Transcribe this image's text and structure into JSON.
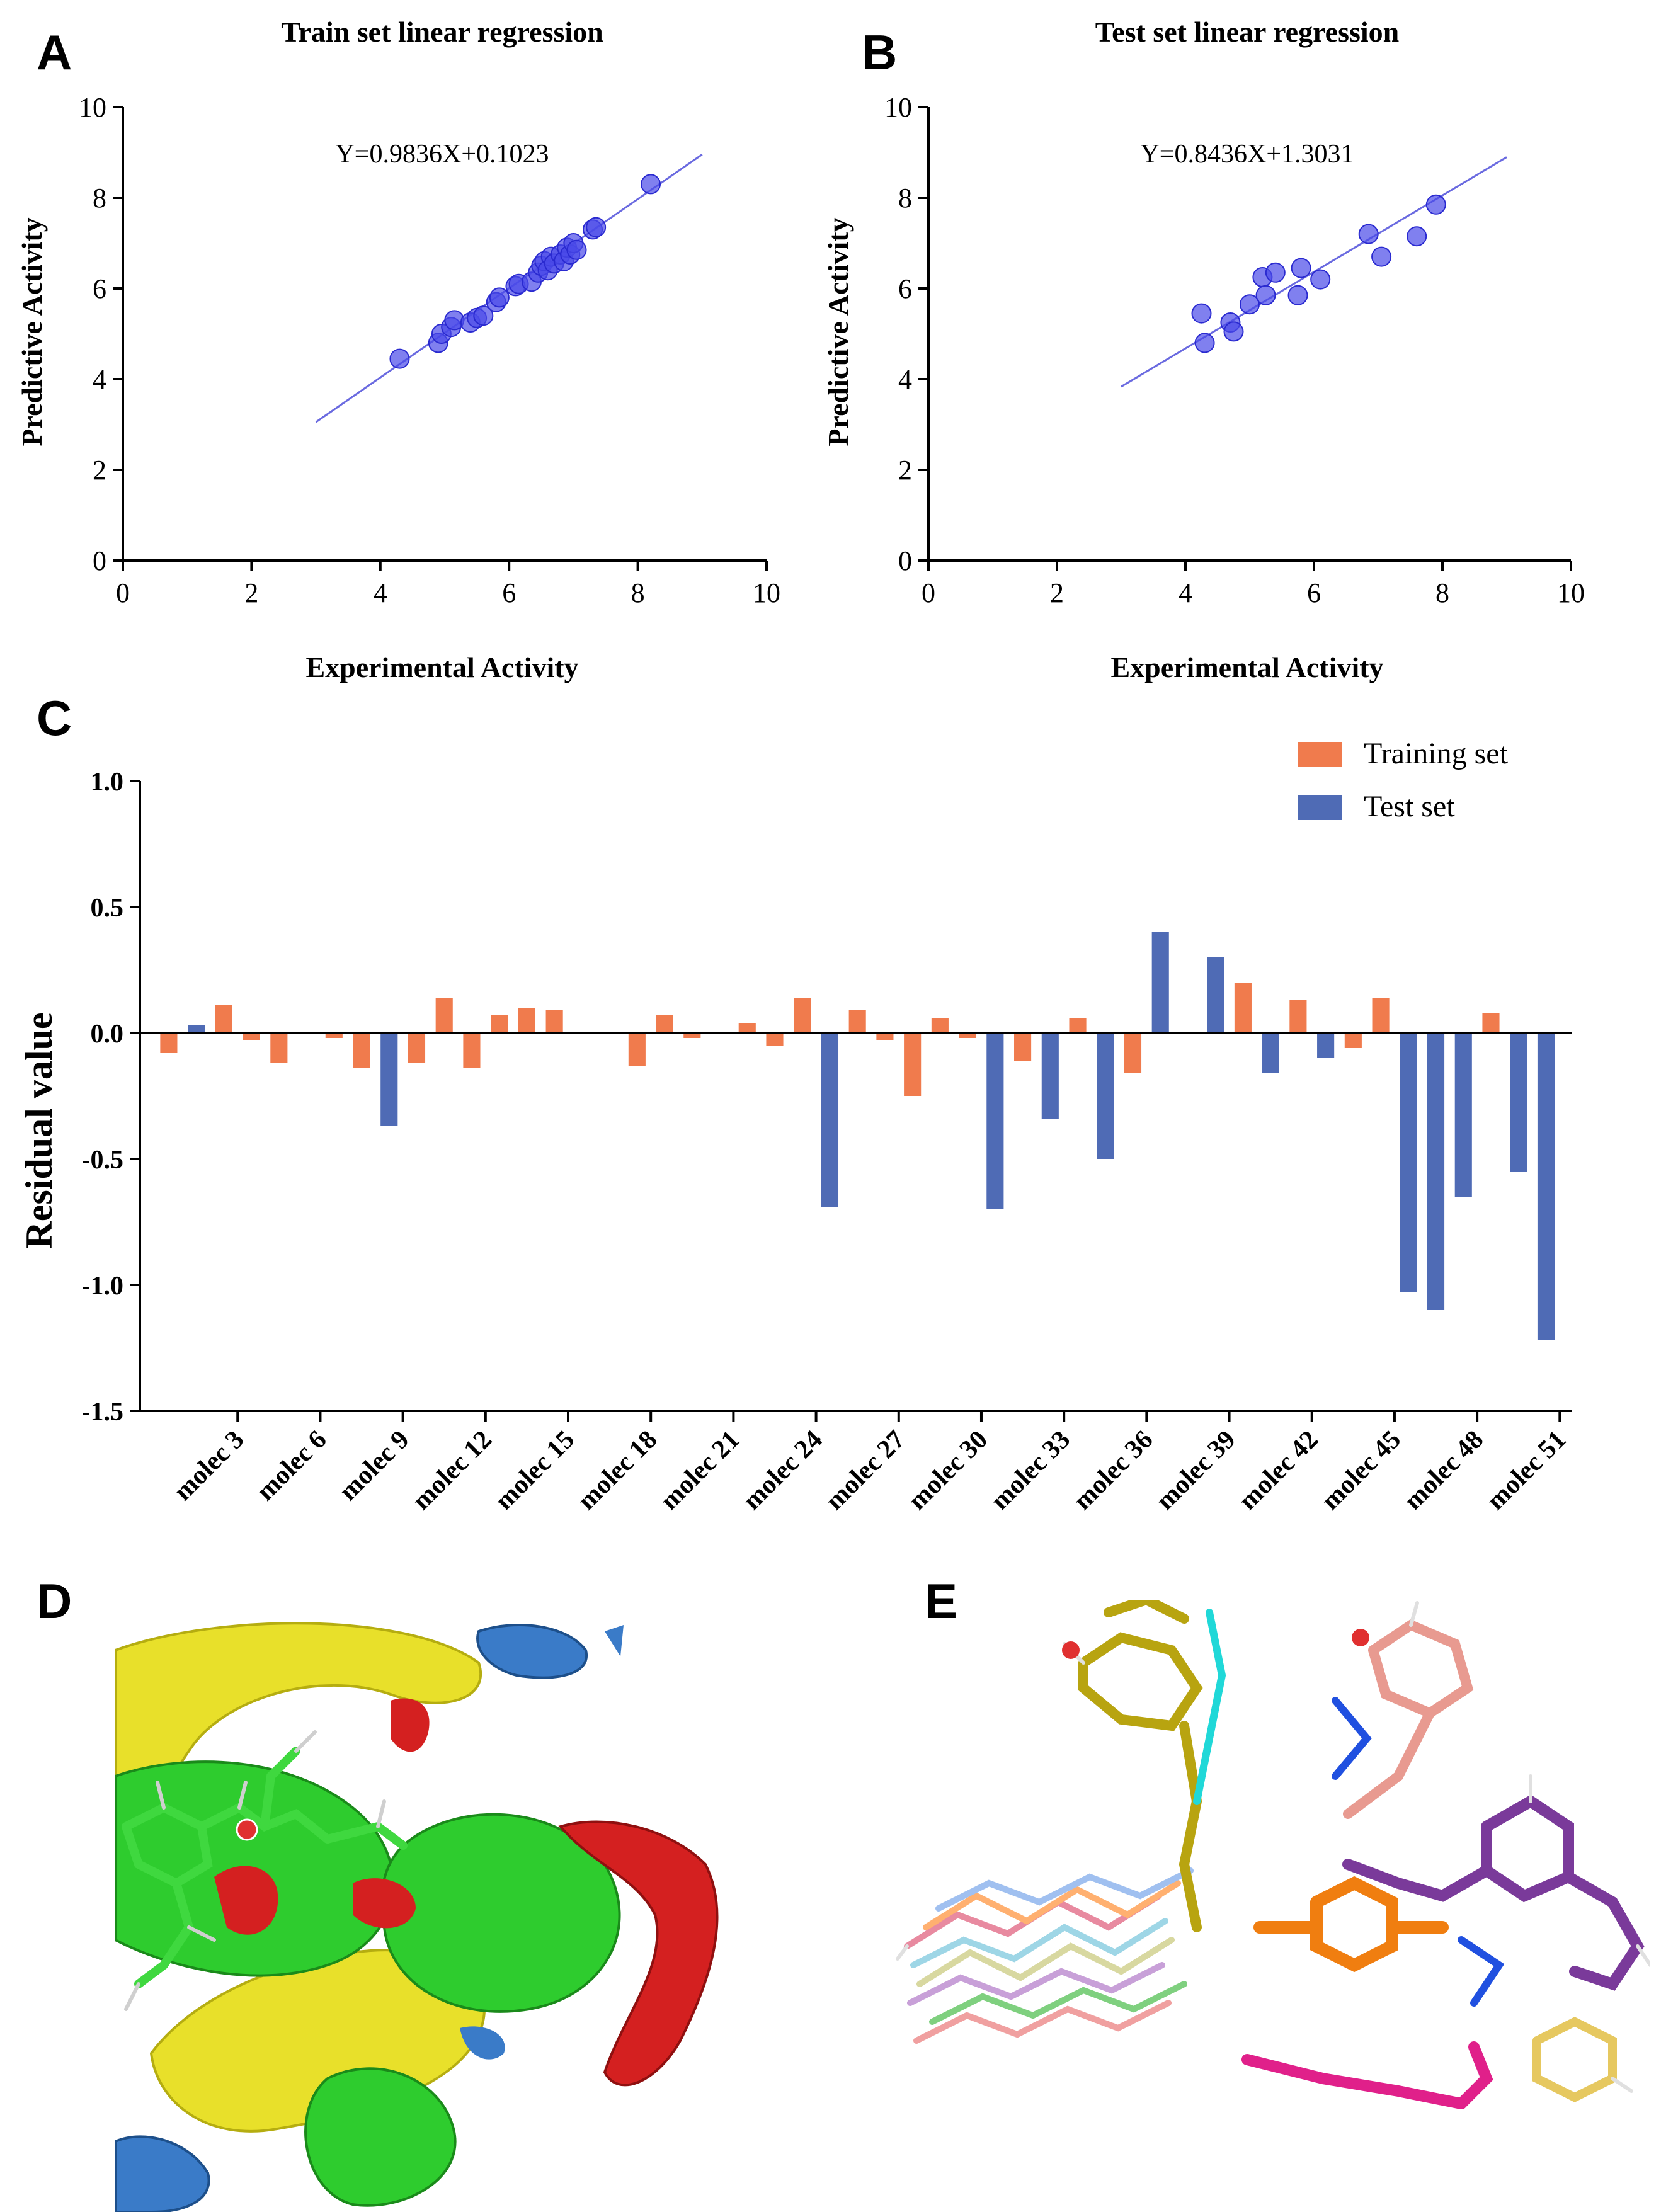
{
  "panels": {
    "a": "A",
    "b": "B",
    "c": "C",
    "d": "D",
    "e": "E"
  },
  "chart_data": [
    {
      "type": "scatter",
      "title": "Train set linear regression",
      "equation": "Y=0.9836X+0.1023",
      "xlabel": "Experimental Activity",
      "ylabel": "Predictive Activity",
      "xlim": [
        0,
        10
      ],
      "ylim": [
        0,
        10
      ],
      "xticks": [
        "0",
        "2",
        "4",
        "6",
        "8",
        "10"
      ],
      "yticks": [
        "0",
        "2",
        "4",
        "6",
        "8",
        "10"
      ],
      "fit": {
        "slope": 0.9836,
        "intercept": 0.1023,
        "x_range": [
          3,
          9
        ]
      },
      "points": [
        [
          4.3,
          4.45
        ],
        [
          4.9,
          4.8
        ],
        [
          4.95,
          5.0
        ],
        [
          5.1,
          5.15
        ],
        [
          5.15,
          5.3
        ],
        [
          5.4,
          5.25
        ],
        [
          5.5,
          5.35
        ],
        [
          5.6,
          5.4
        ],
        [
          5.8,
          5.7
        ],
        [
          5.85,
          5.8
        ],
        [
          6.1,
          6.05
        ],
        [
          6.15,
          6.1
        ],
        [
          6.35,
          6.15
        ],
        [
          6.45,
          6.35
        ],
        [
          6.5,
          6.5
        ],
        [
          6.55,
          6.6
        ],
        [
          6.6,
          6.4
        ],
        [
          6.65,
          6.7
        ],
        [
          6.7,
          6.55
        ],
        [
          6.8,
          6.75
        ],
        [
          6.85,
          6.6
        ],
        [
          6.9,
          6.9
        ],
        [
          6.95,
          6.75
        ],
        [
          7.0,
          7.0
        ],
        [
          7.05,
          6.85
        ],
        [
          7.3,
          7.3
        ],
        [
          7.35,
          7.35
        ],
        [
          8.2,
          8.3
        ]
      ]
    },
    {
      "type": "scatter",
      "title": "Test set linear regression",
      "equation": "Y=0.8436X+1.3031",
      "xlabel": "Experimental Activity",
      "ylabel": "Predictive Activity",
      "xlim": [
        0,
        10
      ],
      "ylim": [
        0,
        10
      ],
      "xticks": [
        "0",
        "2",
        "4",
        "6",
        "8",
        "10"
      ],
      "yticks": [
        "0",
        "2",
        "4",
        "6",
        "8",
        "10"
      ],
      "fit": {
        "slope": 0.8436,
        "intercept": 1.3031,
        "x_range": [
          3,
          9
        ]
      },
      "points": [
        [
          4.25,
          5.45
        ],
        [
          4.3,
          4.8
        ],
        [
          4.7,
          5.25
        ],
        [
          4.75,
          5.05
        ],
        [
          5.0,
          5.65
        ],
        [
          5.2,
          6.25
        ],
        [
          5.25,
          5.85
        ],
        [
          5.4,
          6.35
        ],
        [
          5.75,
          5.85
        ],
        [
          5.8,
          6.45
        ],
        [
          6.1,
          6.2
        ],
        [
          6.85,
          7.2
        ],
        [
          7.05,
          6.7
        ],
        [
          7.6,
          7.15
        ],
        [
          7.9,
          7.85
        ]
      ]
    },
    {
      "type": "bar",
      "ylabel": "Residual value",
      "ylim": [
        -1.5,
        1.0
      ],
      "yticks": [
        "1.0",
        "0.5",
        "0.0",
        "-0.5",
        "-1.0",
        "-1.5"
      ],
      "ytick_values": [
        1.0,
        0.5,
        0.0,
        -0.5,
        -1.0,
        -1.5
      ],
      "tick_labels": [
        "molec 3",
        "molec 6",
        "molec 9",
        "molec 12",
        "molec 15",
        "molec 18",
        "molec 21",
        "molec 24",
        "molec 27",
        "molec 30",
        "molec 33",
        "molec 36",
        "molec 39",
        "molec 42",
        "molec 45",
        "molec 48",
        "molec 51"
      ],
      "tick_positions": [
        3,
        6,
        9,
        12,
        15,
        18,
        21,
        24,
        27,
        30,
        33,
        36,
        39,
        42,
        45,
        48,
        51
      ],
      "legend": [
        {
          "label": "Training set",
          "color": "#f07b4d"
        },
        {
          "label": "Test set",
          "color": "#4f6bb5"
        }
      ],
      "legend_position": "top-right",
      "bars": [
        {
          "i": 1,
          "v": -0.08,
          "s": 0
        },
        {
          "i": 2,
          "v": 0.03,
          "s": 1
        },
        {
          "i": 3,
          "v": 0.11,
          "s": 0
        },
        {
          "i": 4,
          "v": -0.03,
          "s": 0
        },
        {
          "i": 5,
          "v": -0.12,
          "s": 0
        },
        {
          "i": 7,
          "v": -0.02,
          "s": 0
        },
        {
          "i": 8,
          "v": -0.14,
          "s": 0
        },
        {
          "i": 9,
          "v": -0.37,
          "s": 1
        },
        {
          "i": 10,
          "v": -0.12,
          "s": 0
        },
        {
          "i": 11,
          "v": 0.14,
          "s": 0
        },
        {
          "i": 12,
          "v": -0.14,
          "s": 0
        },
        {
          "i": 13,
          "v": 0.07,
          "s": 0
        },
        {
          "i": 14,
          "v": 0.1,
          "s": 0
        },
        {
          "i": 15,
          "v": 0.09,
          "s": 0
        },
        {
          "i": 18,
          "v": -0.13,
          "s": 0
        },
        {
          "i": 19,
          "v": 0.07,
          "s": 0
        },
        {
          "i": 20,
          "v": -0.02,
          "s": 0
        },
        {
          "i": 22,
          "v": 0.04,
          "s": 0
        },
        {
          "i": 23,
          "v": -0.05,
          "s": 0
        },
        {
          "i": 24,
          "v": 0.14,
          "s": 0
        },
        {
          "i": 25,
          "v": -0.69,
          "s": 1
        },
        {
          "i": 26,
          "v": 0.09,
          "s": 0
        },
        {
          "i": 27,
          "v": -0.03,
          "s": 0
        },
        {
          "i": 28,
          "v": -0.25,
          "s": 0
        },
        {
          "i": 29,
          "v": 0.06,
          "s": 0
        },
        {
          "i": 30,
          "v": -0.02,
          "s": 0
        },
        {
          "i": 31,
          "v": -0.7,
          "s": 1
        },
        {
          "i": 32,
          "v": -0.11,
          "s": 0
        },
        {
          "i": 33,
          "v": -0.34,
          "s": 1
        },
        {
          "i": 34,
          "v": 0.06,
          "s": 0
        },
        {
          "i": 35,
          "v": -0.5,
          "s": 1
        },
        {
          "i": 36,
          "v": -0.16,
          "s": 0
        },
        {
          "i": 37,
          "v": 0.4,
          "s": 1
        },
        {
          "i": 39,
          "v": 0.3,
          "s": 1
        },
        {
          "i": 40,
          "v": 0.2,
          "s": 0
        },
        {
          "i": 41,
          "v": -0.16,
          "s": 1
        },
        {
          "i": 42,
          "v": 0.13,
          "s": 0
        },
        {
          "i": 43,
          "v": -0.1,
          "s": 1
        },
        {
          "i": 44,
          "v": -0.06,
          "s": 0
        },
        {
          "i": 45,
          "v": 0.14,
          "s": 0
        },
        {
          "i": 46,
          "v": -1.03,
          "s": 1
        },
        {
          "i": 47,
          "v": -1.1,
          "s": 1
        },
        {
          "i": 48,
          "v": -0.65,
          "s": 1
        },
        {
          "i": 49,
          "v": 0.08,
          "s": 0
        },
        {
          "i": 50,
          "v": -0.55,
          "s": 1
        },
        {
          "i": 51,
          "v": -1.22,
          "s": 1
        }
      ]
    }
  ],
  "colors": {
    "point_fill": "#4a4ae8",
    "fit_line": "#6a6ae0",
    "training": "#f07b4d",
    "test": "#4f6bb5"
  }
}
